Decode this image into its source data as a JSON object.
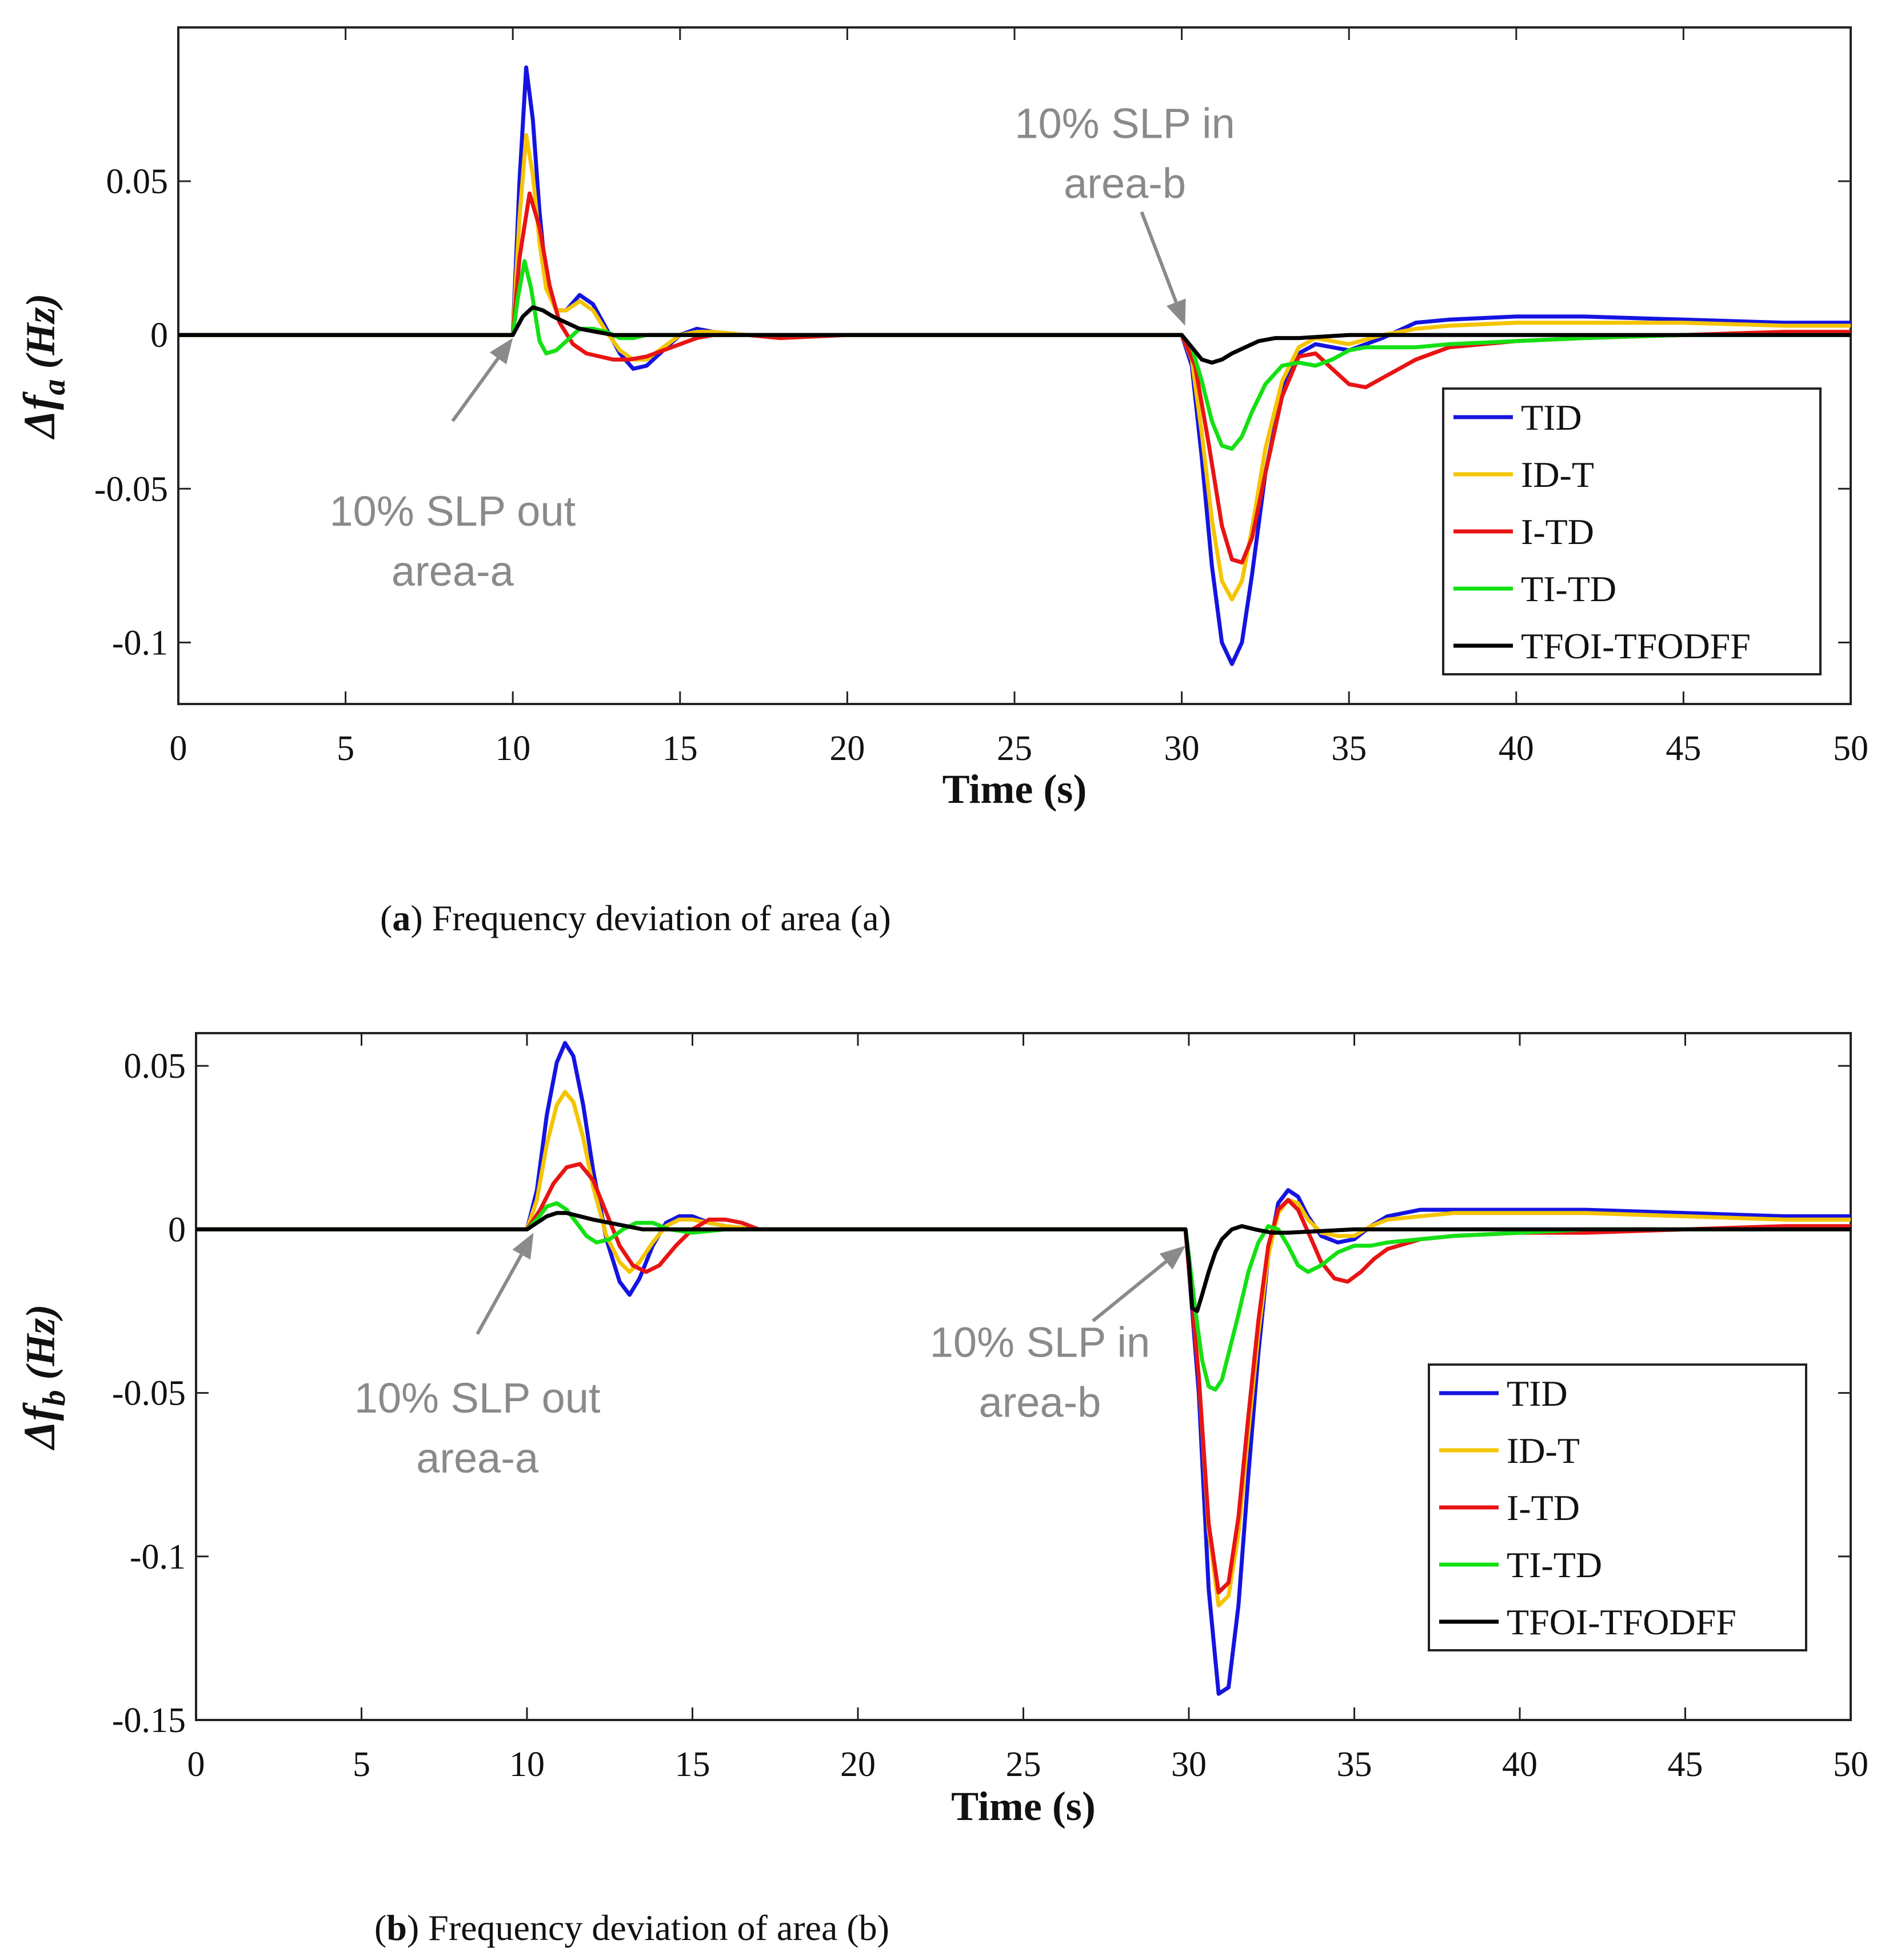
{
  "chart_data": [
    {
      "type": "line",
      "caption_label": "a",
      "caption_text": "Frequency deviation of area (a)",
      "xlabel": "Time (s)",
      "ylabel_main": "Δf",
      "ylabel_sub": "a",
      "ylabel_unit": "(Hz)",
      "xlim": [
        0,
        50
      ],
      "ylim": [
        -0.12,
        0.1
      ],
      "xticks": [
        0,
        5,
        10,
        15,
        20,
        25,
        30,
        35,
        40,
        45,
        50
      ],
      "yticks": [
        0.05,
        0,
        -0.05,
        -0.1
      ],
      "ytick_labels": [
        "0.05",
        "0",
        "-0.05",
        "-0.1"
      ],
      "legend_position": "lower-right",
      "annotations": [
        {
          "lines": [
            "10% SLP out",
            "area-a"
          ],
          "text_at": [
            8.2,
            -0.062
          ],
          "arrow_from": [
            8.2,
            -0.028
          ],
          "arrow_to": [
            10.0,
            -0.001
          ]
        },
        {
          "lines": [
            "10% SLP in",
            "area-b"
          ],
          "text_at": [
            28.3,
            0.064
          ],
          "arrow_from": [
            28.8,
            0.04
          ],
          "arrow_to": [
            30.1,
            0.003
          ]
        }
      ],
      "series": [
        {
          "name": "TID",
          "color": "#1414e0",
          "x": [
            0,
            10,
            10.2,
            10.4,
            10.6,
            10.8,
            11.0,
            11.3,
            11.6,
            12.0,
            12.4,
            12.8,
            13.2,
            13.6,
            14.0,
            14.5,
            15.0,
            15.5,
            16.0,
            17.0,
            18.0,
            20.0,
            25.0,
            30.0,
            30.3,
            30.6,
            30.9,
            31.2,
            31.5,
            31.8,
            32.1,
            32.5,
            33.0,
            33.5,
            34.0,
            34.5,
            35.0,
            36.0,
            37.0,
            38.0,
            40.0,
            42.0,
            45.0,
            48.0,
            50.0
          ],
          "y": [
            0,
            0,
            0.05,
            0.087,
            0.07,
            0.04,
            0.018,
            0.008,
            0.008,
            0.013,
            0.01,
            0.002,
            -0.006,
            -0.011,
            -0.01,
            -0.005,
            0,
            0.002,
            0.001,
            0,
            0,
            0,
            0,
            0,
            -0.01,
            -0.04,
            -0.075,
            -0.1,
            -0.107,
            -0.1,
            -0.078,
            -0.045,
            -0.018,
            -0.006,
            -0.003,
            -0.004,
            -0.005,
            -0.001,
            0.004,
            0.005,
            0.006,
            0.006,
            0.005,
            0.004,
            0.004
          ]
        },
        {
          "name": "ID-T",
          "color": "#f5c400",
          "x": [
            0,
            10,
            10.2,
            10.4,
            10.6,
            10.8,
            11.0,
            11.3,
            11.6,
            12.0,
            12.4,
            12.8,
            13.2,
            13.6,
            14.0,
            14.5,
            15.0,
            15.5,
            16.0,
            17.0,
            18.0,
            20.0,
            25.0,
            30.0,
            30.3,
            30.6,
            30.9,
            31.2,
            31.5,
            31.8,
            32.1,
            32.5,
            33.0,
            33.5,
            34.0,
            34.5,
            35.0,
            36.0,
            37.0,
            38.0,
            40.0,
            42.0,
            45.0,
            48.0,
            50.0
          ],
          "y": [
            0,
            0,
            0.038,
            0.065,
            0.052,
            0.03,
            0.015,
            0.008,
            0.008,
            0.011,
            0.008,
            0.001,
            -0.005,
            -0.008,
            -0.008,
            -0.004,
            0,
            0.001,
            0.001,
            0,
            0,
            0,
            0,
            0,
            -0.008,
            -0.032,
            -0.06,
            -0.08,
            -0.086,
            -0.08,
            -0.063,
            -0.037,
            -0.015,
            -0.004,
            -0.001,
            -0.002,
            -0.003,
            0,
            0.002,
            0.003,
            0.004,
            0.004,
            0.004,
            0.003,
            0.003
          ]
        },
        {
          "name": "I-TD",
          "color": "#e81414",
          "x": [
            0,
            10,
            10.2,
            10.5,
            10.8,
            11.1,
            11.4,
            11.8,
            12.2,
            12.6,
            13.0,
            13.5,
            14.0,
            14.5,
            15.0,
            15.5,
            16.0,
            17.0,
            18.0,
            20.0,
            25.0,
            30.0,
            30.4,
            30.8,
            31.2,
            31.5,
            31.8,
            32.1,
            32.5,
            33.0,
            33.5,
            34.0,
            34.5,
            35.0,
            35.5,
            36.0,
            37.0,
            38.0,
            40.0,
            42.0,
            45.0,
            48.0,
            50.0
          ],
          "y": [
            0,
            0,
            0.025,
            0.046,
            0.035,
            0.016,
            0.004,
            -0.003,
            -0.006,
            -0.007,
            -0.008,
            -0.008,
            -0.007,
            -0.005,
            -0.003,
            -0.001,
            0,
            0,
            -0.001,
            0,
            0,
            0,
            -0.01,
            -0.035,
            -0.062,
            -0.073,
            -0.074,
            -0.066,
            -0.045,
            -0.02,
            -0.007,
            -0.006,
            -0.011,
            -0.016,
            -0.017,
            -0.014,
            -0.008,
            -0.004,
            -0.002,
            -0.001,
            0,
            0.001,
            0.001
          ]
        },
        {
          "name": "TI-TD",
          "color": "#14e014",
          "x": [
            0,
            10,
            10.15,
            10.35,
            10.55,
            10.8,
            11.0,
            11.3,
            11.6,
            12.0,
            12.4,
            12.8,
            13.2,
            13.6,
            14.0,
            15.0,
            16.0,
            18.0,
            20.0,
            25.0,
            30.0,
            30.3,
            30.6,
            30.9,
            31.2,
            31.5,
            31.8,
            32.1,
            32.5,
            33.0,
            33.5,
            34.0,
            34.5,
            35.0,
            35.5,
            36.0,
            37.0,
            38.0,
            40.0,
            42.0,
            45.0,
            48.0,
            50.0
          ],
          "y": [
            0,
            0,
            0.012,
            0.024,
            0.015,
            -0.002,
            -0.006,
            -0.005,
            -0.002,
            0.002,
            0.002,
            0.001,
            -0.001,
            -0.001,
            0,
            0,
            0,
            0,
            0,
            0,
            0,
            -0.004,
            -0.015,
            -0.028,
            -0.036,
            -0.037,
            -0.033,
            -0.025,
            -0.016,
            -0.01,
            -0.009,
            -0.01,
            -0.008,
            -0.005,
            -0.004,
            -0.004,
            -0.004,
            -0.003,
            -0.002,
            -0.001,
            0,
            0,
            0
          ]
        },
        {
          "name": "TFOI-TFODFF",
          "color": "#000000",
          "x": [
            0,
            10,
            10.3,
            10.6,
            10.9,
            11.2,
            11.6,
            12.0,
            12.5,
            13.0,
            13.5,
            14.0,
            15.0,
            20.0,
            25.0,
            30.0,
            30.3,
            30.6,
            30.9,
            31.2,
            31.5,
            31.9,
            32.3,
            32.8,
            33.5,
            35.0,
            40.0,
            45.0,
            50.0
          ],
          "y": [
            0,
            0,
            0.006,
            0.009,
            0.008,
            0.006,
            0.004,
            0.002,
            0.001,
            0,
            0,
            0,
            0,
            0,
            0,
            0,
            -0.004,
            -0.008,
            -0.009,
            -0.008,
            -0.006,
            -0.004,
            -0.002,
            -0.001,
            -0.001,
            0,
            0,
            0,
            0
          ]
        }
      ]
    },
    {
      "type": "line",
      "caption_label": "b",
      "caption_text": "Frequency deviation of area (b)",
      "xlabel": "Time (s)",
      "ylabel_main": "Δf",
      "ylabel_sub": "b",
      "ylabel_unit": "(Hz)",
      "xlim": [
        0,
        50
      ],
      "ylim": [
        -0.15,
        0.06
      ],
      "xticks": [
        0,
        5,
        10,
        15,
        20,
        25,
        30,
        35,
        40,
        45,
        50
      ],
      "yticks": [
        0.05,
        0,
        -0.05,
        -0.1,
        -0.15
      ],
      "ytick_labels": [
        "0.05",
        "0",
        "-0.05",
        "-0.1",
        "-0.15"
      ],
      "legend_position": "lower-right",
      "annotations": [
        {
          "lines": [
            "10% SLP out",
            "area-a"
          ],
          "text_at": [
            8.5,
            -0.056
          ],
          "arrow_from": [
            8.5,
            -0.032
          ],
          "arrow_to": [
            10.2,
            -0.001
          ]
        },
        {
          "lines": [
            "10% SLP in",
            "area-b"
          ],
          "text_at": [
            25.5,
            -0.039
          ],
          "arrow_from": [
            27.1,
            -0.028
          ],
          "arrow_to": [
            29.9,
            -0.005
          ]
        }
      ],
      "series": [
        {
          "name": "TID",
          "color": "#1414e0",
          "x": [
            0,
            10,
            10.3,
            10.6,
            10.9,
            11.15,
            11.4,
            11.7,
            12.0,
            12.4,
            12.8,
            13.1,
            13.4,
            13.8,
            14.2,
            14.6,
            15.0,
            15.5,
            16.0,
            17.0,
            18.0,
            20.0,
            25.0,
            29.9,
            30.0,
            30.3,
            30.6,
            30.9,
            31.2,
            31.5,
            31.8,
            32.1,
            32.4,
            32.7,
            33.0,
            33.3,
            33.6,
            34.0,
            34.5,
            35.0,
            35.5,
            36.0,
            37.0,
            38.0,
            40.0,
            42.0,
            45.0,
            48.0,
            50.0
          ],
          "y": [
            0,
            0,
            0.012,
            0.035,
            0.051,
            0.057,
            0.053,
            0.038,
            0.018,
            -0.003,
            -0.016,
            -0.02,
            -0.015,
            -0.005,
            0.002,
            0.004,
            0.004,
            0.002,
            0.001,
            0,
            0,
            0,
            0,
            0,
            -0.012,
            -0.05,
            -0.11,
            -0.142,
            -0.14,
            -0.115,
            -0.075,
            -0.038,
            -0.008,
            0.008,
            0.012,
            0.01,
            0.004,
            -0.002,
            -0.004,
            -0.003,
            0.001,
            0.004,
            0.006,
            0.006,
            0.006,
            0.006,
            0.005,
            0.004,
            0.004
          ]
        },
        {
          "name": "ID-T",
          "color": "#f5c400",
          "x": [
            0,
            10,
            10.3,
            10.6,
            10.9,
            11.15,
            11.4,
            11.7,
            12.0,
            12.4,
            12.8,
            13.1,
            13.4,
            13.8,
            14.2,
            14.6,
            15.0,
            15.5,
            16.0,
            17.0,
            18.0,
            20.0,
            25.0,
            29.9,
            30.0,
            30.3,
            30.6,
            30.9,
            31.2,
            31.5,
            31.8,
            32.1,
            32.4,
            32.7,
            33.0,
            33.3,
            33.6,
            34.0,
            34.5,
            35.0,
            35.5,
            36.0,
            37.0,
            38.0,
            40.0,
            42.0,
            45.0,
            48.0,
            50.0
          ],
          "y": [
            0,
            0,
            0.009,
            0.026,
            0.038,
            0.042,
            0.039,
            0.028,
            0.013,
            -0.002,
            -0.01,
            -0.013,
            -0.01,
            -0.004,
            0.001,
            0.003,
            0.003,
            0.002,
            0.001,
            0,
            0,
            0,
            0,
            0,
            -0.01,
            -0.045,
            -0.092,
            -0.115,
            -0.112,
            -0.093,
            -0.062,
            -0.032,
            -0.008,
            0.005,
            0.009,
            0.008,
            0.003,
            -0.001,
            -0.002,
            -0.002,
            0.001,
            0.003,
            0.004,
            0.005,
            0.005,
            0.005,
            0.004,
            0.003,
            0.003
          ]
        },
        {
          "name": "I-TD",
          "color": "#e81414",
          "x": [
            0,
            10,
            10.4,
            10.8,
            11.2,
            11.6,
            12.0,
            12.4,
            12.8,
            13.2,
            13.6,
            14.0,
            14.5,
            15.0,
            15.5,
            16.0,
            16.5,
            17.0,
            18.0,
            20.0,
            25.0,
            29.9,
            30.0,
            30.3,
            30.6,
            30.9,
            31.2,
            31.5,
            31.8,
            32.1,
            32.4,
            32.7,
            33.0,
            33.3,
            33.7,
            34.0,
            34.4,
            34.8,
            35.2,
            35.6,
            36.0,
            37.0,
            38.0,
            40.0,
            42.0,
            45.0,
            48.0,
            50.0
          ],
          "y": [
            0,
            0,
            0.006,
            0.014,
            0.019,
            0.02,
            0.015,
            0.005,
            -0.005,
            -0.011,
            -0.013,
            -0.011,
            -0.005,
            0,
            0.003,
            0.003,
            0.002,
            0,
            0,
            0,
            0,
            0,
            -0.012,
            -0.045,
            -0.09,
            -0.111,
            -0.108,
            -0.088,
            -0.057,
            -0.028,
            -0.005,
            0.006,
            0.009,
            0.006,
            -0.003,
            -0.01,
            -0.015,
            -0.016,
            -0.013,
            -0.009,
            -0.006,
            -0.003,
            -0.002,
            -0.001,
            -0.001,
            0,
            0.001,
            0.001
          ]
        },
        {
          "name": "TI-TD",
          "color": "#14e014",
          "x": [
            0,
            10,
            10.3,
            10.6,
            10.9,
            11.2,
            11.5,
            11.8,
            12.1,
            12.5,
            12.9,
            13.3,
            13.8,
            14.3,
            15.0,
            16.0,
            18.0,
            20.0,
            25.0,
            29.9,
            30.0,
            30.2,
            30.4,
            30.6,
            30.8,
            31.0,
            31.2,
            31.5,
            31.8,
            32.1,
            32.4,
            32.7,
            33.0,
            33.3,
            33.6,
            34.0,
            34.5,
            35.0,
            35.5,
            36.0,
            37.0,
            38.0,
            40.0,
            42.0,
            45.0,
            48.0,
            50.0
          ],
          "y": [
            0,
            0,
            0.003,
            0.007,
            0.008,
            0.006,
            0.002,
            -0.002,
            -0.004,
            -0.003,
            0,
            0.002,
            0.002,
            0,
            -0.001,
            0,
            0,
            0,
            0,
            0,
            -0.008,
            -0.025,
            -0.04,
            -0.048,
            -0.049,
            -0.046,
            -0.038,
            -0.026,
            -0.013,
            -0.004,
            0.001,
            0,
            -0.005,
            -0.011,
            -0.013,
            -0.011,
            -0.007,
            -0.005,
            -0.005,
            -0.004,
            -0.003,
            -0.002,
            -0.001,
            0,
            0,
            0,
            0
          ]
        },
        {
          "name": "TFOI-TFODFF",
          "color": "#000000",
          "x": [
            0,
            10,
            10.3,
            10.6,
            10.9,
            11.2,
            11.6,
            12.0,
            12.5,
            13.0,
            13.5,
            14.0,
            15.0,
            20.0,
            25.0,
            29.9,
            30.0,
            30.1,
            30.25,
            30.4,
            30.6,
            30.8,
            31.0,
            31.3,
            31.6,
            32.0,
            32.5,
            33.0,
            35.0,
            40.0,
            45.0,
            50.0
          ],
          "y": [
            0,
            0,
            0.002,
            0.004,
            0.005,
            0.005,
            0.004,
            0.003,
            0.002,
            0.001,
            0,
            0,
            0,
            0,
            0,
            0,
            -0.01,
            -0.024,
            -0.025,
            -0.02,
            -0.013,
            -0.007,
            -0.003,
            0,
            0.001,
            0,
            -0.001,
            -0.001,
            0,
            0,
            0,
            0
          ]
        }
      ]
    }
  ]
}
